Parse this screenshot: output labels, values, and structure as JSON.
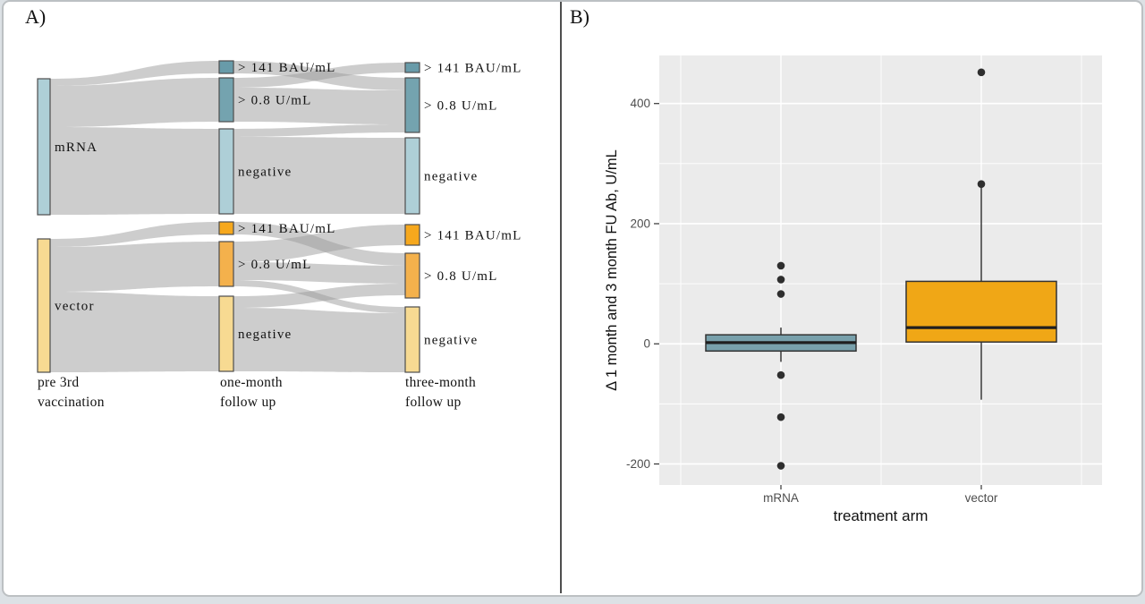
{
  "frame": {
    "page_bg": "#dce1e5",
    "card_bg": "#ffffff",
    "card_border": "#bcc0c3",
    "divider_color": "#4e4e4e"
  },
  "panel_a": {
    "label": "A)"
  },
  "panel_b": {
    "label": "B)"
  },
  "chart_data": [
    {
      "type": "sankey",
      "panel": "A",
      "stages": [
        "pre 3rd vaccination",
        "one-month follow up",
        "three-month follow up"
      ],
      "stage_label_lines": [
        [
          "pre 3rd",
          "vaccination"
        ],
        [
          "one-month",
          "follow up"
        ],
        [
          "three-month",
          "follow up"
        ]
      ],
      "groups": [
        "mRNA",
        "vector"
      ],
      "flow_color": "rgba(156,156,156,0.5)",
      "node_stroke": "#4d4d4d",
      "columns": {
        "1": {
          "x": 42,
          "w": 14
        },
        "2": {
          "x": 245,
          "w": 16
        },
        "3": {
          "x": 453,
          "w": 16
        }
      },
      "nodes": [
        {
          "id": "m1",
          "col": 1,
          "y0": 88,
          "y1": 240,
          "color": "#aecfd7",
          "label": "mRNA"
        },
        {
          "id": "v1",
          "col": 1,
          "y0": 267,
          "y1": 416,
          "color": "#f7da92",
          "label": "vector"
        },
        {
          "id": "m2a",
          "col": 2,
          "y0": 68,
          "y1": 82,
          "color": "#689ba9",
          "label": "> 141 BAU/mL"
        },
        {
          "id": "m2b",
          "col": 2,
          "y0": 87,
          "y1": 136,
          "color": "#74a3af",
          "label": "> 0.8 U/mL"
        },
        {
          "id": "m2c",
          "col": 2,
          "y0": 144,
          "y1": 239,
          "color": "#aecfd7",
          "label": "negative"
        },
        {
          "id": "v2a",
          "col": 2,
          "y0": 248,
          "y1": 262,
          "color": "#f6a81d",
          "label": "> 141 BAU/mL"
        },
        {
          "id": "v2b",
          "col": 2,
          "y0": 270,
          "y1": 320,
          "color": "#f4b14c",
          "label": "> 0.8 U/mL"
        },
        {
          "id": "v2c",
          "col": 2,
          "y0": 331,
          "y1": 415,
          "color": "#f7da92",
          "label": "negative"
        },
        {
          "id": "m3a",
          "col": 3,
          "y0": 70,
          "y1": 81,
          "color": "#689ba9",
          "label": "> 141 BAU/mL"
        },
        {
          "id": "m3b",
          "col": 3,
          "y0": 87,
          "y1": 148,
          "color": "#74a3af",
          "label": "> 0.8 U/mL"
        },
        {
          "id": "m3c",
          "col": 3,
          "y0": 154,
          "y1": 239,
          "color": "#aecfd7",
          "label": "negative"
        },
        {
          "id": "v3a",
          "col": 3,
          "y0": 251,
          "y1": 274,
          "color": "#f6a81d",
          "label": "> 141 BAU/mL"
        },
        {
          "id": "v3b",
          "col": 3,
          "y0": 283,
          "y1": 333,
          "color": "#f4b14c",
          "label": "> 0.8 U/mL"
        },
        {
          "id": "v3c",
          "col": 3,
          "y0": 343,
          "y1": 416,
          "color": "#f7da92",
          "label": "negative"
        }
      ],
      "flows": [
        {
          "from": "m1",
          "to": "m2a",
          "sy0": 88,
          "sy1": 96,
          "ty0": 68,
          "ty1": 82
        },
        {
          "from": "m1",
          "to": "m2b",
          "sy0": 96,
          "sy1": 142,
          "ty0": 87,
          "ty1": 136
        },
        {
          "from": "m1",
          "to": "m2c",
          "sy0": 142,
          "sy1": 240,
          "ty0": 144,
          "ty1": 239
        },
        {
          "from": "v1",
          "to": "v2a",
          "sy0": 267,
          "sy1": 276,
          "ty0": 248,
          "ty1": 262
        },
        {
          "from": "v1",
          "to": "v2b",
          "sy0": 276,
          "sy1": 326,
          "ty0": 270,
          "ty1": 320
        },
        {
          "from": "v1",
          "to": "v2c",
          "sy0": 326,
          "sy1": 416,
          "ty0": 331,
          "ty1": 415
        },
        {
          "from": "m2a",
          "to": "m3b",
          "sy0": 68,
          "sy1": 82,
          "ty0": 87,
          "ty1": 101
        },
        {
          "from": "m2b",
          "to": "m3a",
          "sy0": 87,
          "sy1": 98,
          "ty0": 70,
          "ty1": 81
        },
        {
          "from": "m2b",
          "to": "m3b",
          "sy0": 98,
          "sy1": 136,
          "ty0": 101,
          "ty1": 139
        },
        {
          "from": "m2c",
          "to": "m3b",
          "sy0": 144,
          "sy1": 153,
          "ty0": 139,
          "ty1": 148
        },
        {
          "from": "m2c",
          "to": "m3c",
          "sy0": 153,
          "sy1": 239,
          "ty0": 154,
          "ty1": 239
        },
        {
          "from": "v2a",
          "to": "v3b",
          "sy0": 248,
          "sy1": 262,
          "ty0": 283,
          "ty1": 297
        },
        {
          "from": "v2b",
          "to": "v3a",
          "sy0": 270,
          "sy1": 293,
          "ty0": 251,
          "ty1": 274
        },
        {
          "from": "v2b",
          "to": "v3b",
          "sy0": 293,
          "sy1": 313,
          "ty0": 297,
          "ty1": 317
        },
        {
          "from": "v2b",
          "to": "v3c",
          "sy0": 313,
          "sy1": 320,
          "ty0": 343,
          "ty1": 350
        },
        {
          "from": "v2c",
          "to": "v3b",
          "sy0": 331,
          "sy1": 344,
          "ty0": 317,
          "ty1": 330
        },
        {
          "from": "v2c",
          "to": "v3c",
          "sy0": 344,
          "sy1": 415,
          "ty0": 350,
          "ty1": 416
        }
      ]
    },
    {
      "type": "boxplot",
      "panel": "B",
      "xlabel": "treatment arm",
      "ylabel": "Δ 1 month and 3 month FU Ab, U/mL",
      "categories": [
        "mRNA",
        "vector"
      ],
      "yticks": [
        -200,
        0,
        200,
        400
      ],
      "minor_yticks": [
        -100,
        100,
        300
      ],
      "ylim": [
        -235,
        480
      ],
      "panel_bg": "#ebebeb",
      "grid_color": "#ffffff",
      "tick_label_color": "#4d4d4d",
      "axis_title_color": "#111111",
      "outlier_color": "#2e2e2e",
      "series": [
        {
          "name": "mRNA",
          "color": "#78a0ab",
          "q1": -12,
          "median": 2,
          "q3": 15,
          "whisker_low": -30,
          "whisker_high": 27,
          "outliers": [
            130,
            107,
            83,
            -52,
            -122,
            -203
          ]
        },
        {
          "name": "vector",
          "color": "#f0a716",
          "q1": 3,
          "median": 27,
          "q3": 104,
          "whisker_low": -93,
          "whisker_high": 266,
          "outliers": [
            266,
            452
          ]
        }
      ]
    }
  ]
}
